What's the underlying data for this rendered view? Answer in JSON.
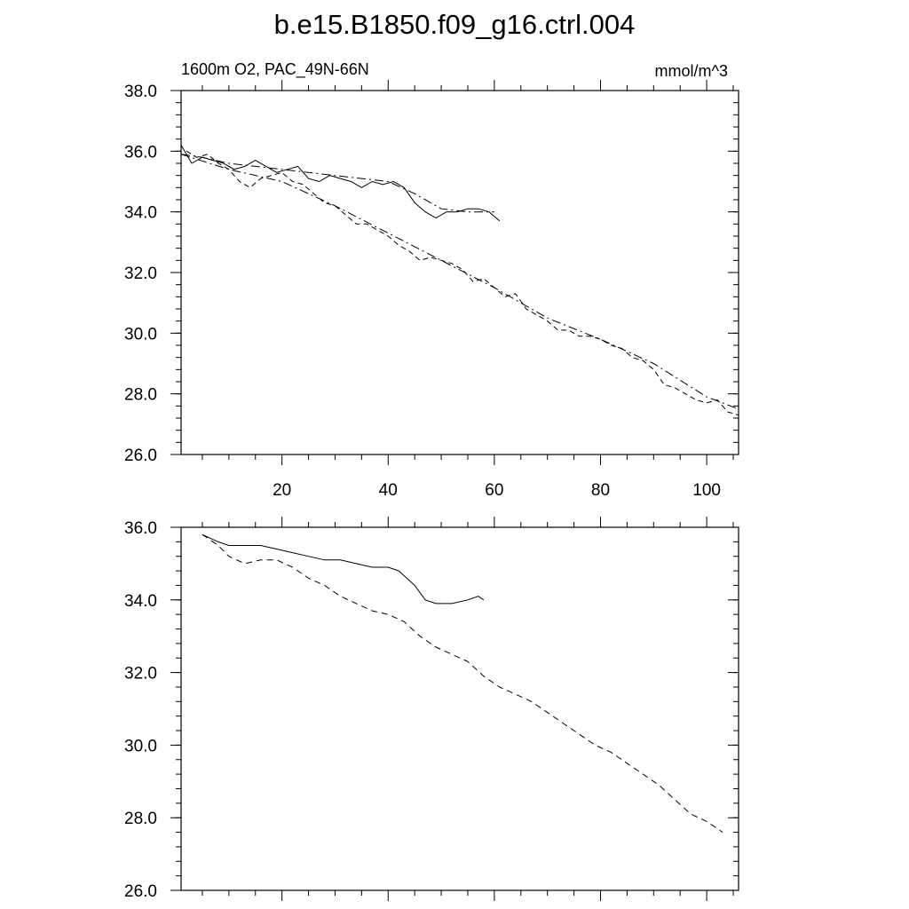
{
  "figure": {
    "title": "b.e15.B1850.f09_g16.ctrl.004",
    "left_label": "1600m O2, PAC_49N-66N",
    "right_label": "mmol/m^3"
  },
  "chart_data": [
    {
      "type": "line",
      "xlim": [
        1,
        106
      ],
      "ylim": [
        26,
        38
      ],
      "yticks": [
        "26.0",
        "28.0",
        "30.0",
        "32.0",
        "34.0",
        "36.0",
        "38.0"
      ],
      "xticks": [
        "20",
        "40",
        "60",
        "80",
        "100"
      ],
      "series": [
        {
          "dash": "none",
          "x": [
            1,
            3,
            5,
            7,
            9,
            11,
            13,
            15,
            17,
            19,
            21,
            23,
            25,
            27,
            29,
            31,
            33,
            35,
            37,
            39,
            41,
            43,
            45,
            47,
            49,
            51,
            53,
            55,
            57,
            59,
            61
          ],
          "y": [
            36.2,
            35.6,
            35.8,
            35.7,
            35.6,
            35.4,
            35.5,
            35.7,
            35.5,
            35.3,
            35.4,
            35.5,
            35.1,
            35.0,
            35.2,
            35.1,
            35.0,
            34.8,
            35.0,
            34.9,
            35.0,
            34.8,
            34.3,
            34.0,
            33.8,
            34.0,
            34.0,
            34.1,
            34.1,
            34.0,
            33.7
          ]
        },
        {
          "dash": "10,4,2,4",
          "x": [
            1,
            5,
            10,
            15,
            20,
            25,
            30,
            35,
            40,
            45,
            50,
            55,
            60
          ],
          "y": [
            35.9,
            35.8,
            35.6,
            35.5,
            35.4,
            35.3,
            35.2,
            35.1,
            35.0,
            34.6,
            34.1,
            34.0,
            34.0
          ]
        },
        {
          "dash": "6,4",
          "x": [
            2,
            4,
            6,
            8,
            10,
            12,
            14,
            16,
            18,
            20,
            22,
            24,
            26,
            28,
            30,
            32,
            34,
            36,
            38,
            40,
            42,
            44,
            46,
            48,
            50,
            52,
            54,
            56,
            58,
            60,
            62,
            64,
            66,
            68,
            70,
            72,
            74,
            76,
            78,
            80,
            82,
            84,
            86,
            88,
            90,
            92,
            94,
            96,
            98,
            100,
            102,
            104,
            106
          ],
          "y": [
            36.0,
            35.8,
            35.9,
            35.6,
            35.4,
            35.0,
            34.8,
            35.1,
            35.2,
            35.3,
            35.0,
            34.9,
            34.6,
            34.3,
            34.2,
            33.9,
            33.6,
            33.6,
            33.4,
            33.2,
            32.9,
            32.7,
            32.4,
            32.5,
            32.4,
            32.3,
            32.1,
            31.7,
            31.8,
            31.5,
            31.2,
            31.3,
            30.8,
            30.6,
            30.4,
            30.1,
            30.1,
            29.9,
            29.9,
            29.8,
            29.6,
            29.5,
            29.2,
            29.1,
            28.8,
            28.3,
            28.2,
            28.0,
            27.8,
            27.7,
            27.8,
            27.4,
            27.3
          ]
        },
        {
          "dash": "10,4,2,4",
          "x": [
            1,
            10,
            20,
            30,
            40,
            50,
            60,
            70,
            80,
            90,
            100,
            106
          ],
          "y": [
            35.9,
            35.4,
            35.0,
            34.2,
            33.3,
            32.4,
            31.5,
            30.5,
            29.8,
            29.0,
            27.9,
            27.5
          ]
        }
      ]
    },
    {
      "type": "line",
      "xlim": [
        1,
        106
      ],
      "ylim": [
        26,
        36
      ],
      "yticks": [
        "26.0",
        "28.0",
        "30.0",
        "32.0",
        "34.0",
        "36.0"
      ],
      "xticks": [
        "",
        "",
        "",
        "",
        ""
      ],
      "series": [
        {
          "dash": "none",
          "x": [
            5,
            8,
            10,
            13,
            16,
            19,
            22,
            25,
            28,
            31,
            34,
            37,
            40,
            42,
            45,
            47,
            49,
            52,
            55,
            57,
            58
          ],
          "y": [
            35.8,
            35.6,
            35.5,
            35.5,
            35.5,
            35.4,
            35.3,
            35.2,
            35.1,
            35.1,
            35.0,
            34.9,
            34.9,
            34.8,
            34.4,
            34.0,
            33.9,
            33.9,
            34.0,
            34.1,
            34.0
          ]
        },
        {
          "dash": "7,5",
          "x": [
            5,
            8,
            10,
            13,
            16,
            19,
            22,
            25,
            28,
            31,
            34,
            37,
            40,
            43,
            46,
            49,
            52,
            55,
            58,
            61,
            64,
            67,
            70,
            73,
            76,
            79,
            82,
            85,
            88,
            91,
            94,
            97,
            100,
            103
          ],
          "y": [
            35.8,
            35.5,
            35.2,
            35.0,
            35.1,
            35.1,
            34.9,
            34.6,
            34.4,
            34.1,
            33.9,
            33.7,
            33.6,
            33.4,
            33.0,
            32.7,
            32.5,
            32.3,
            31.9,
            31.6,
            31.4,
            31.2,
            30.9,
            30.6,
            30.3,
            30.0,
            29.8,
            29.5,
            29.2,
            28.9,
            28.5,
            28.1,
            27.9,
            27.6
          ]
        }
      ]
    }
  ]
}
